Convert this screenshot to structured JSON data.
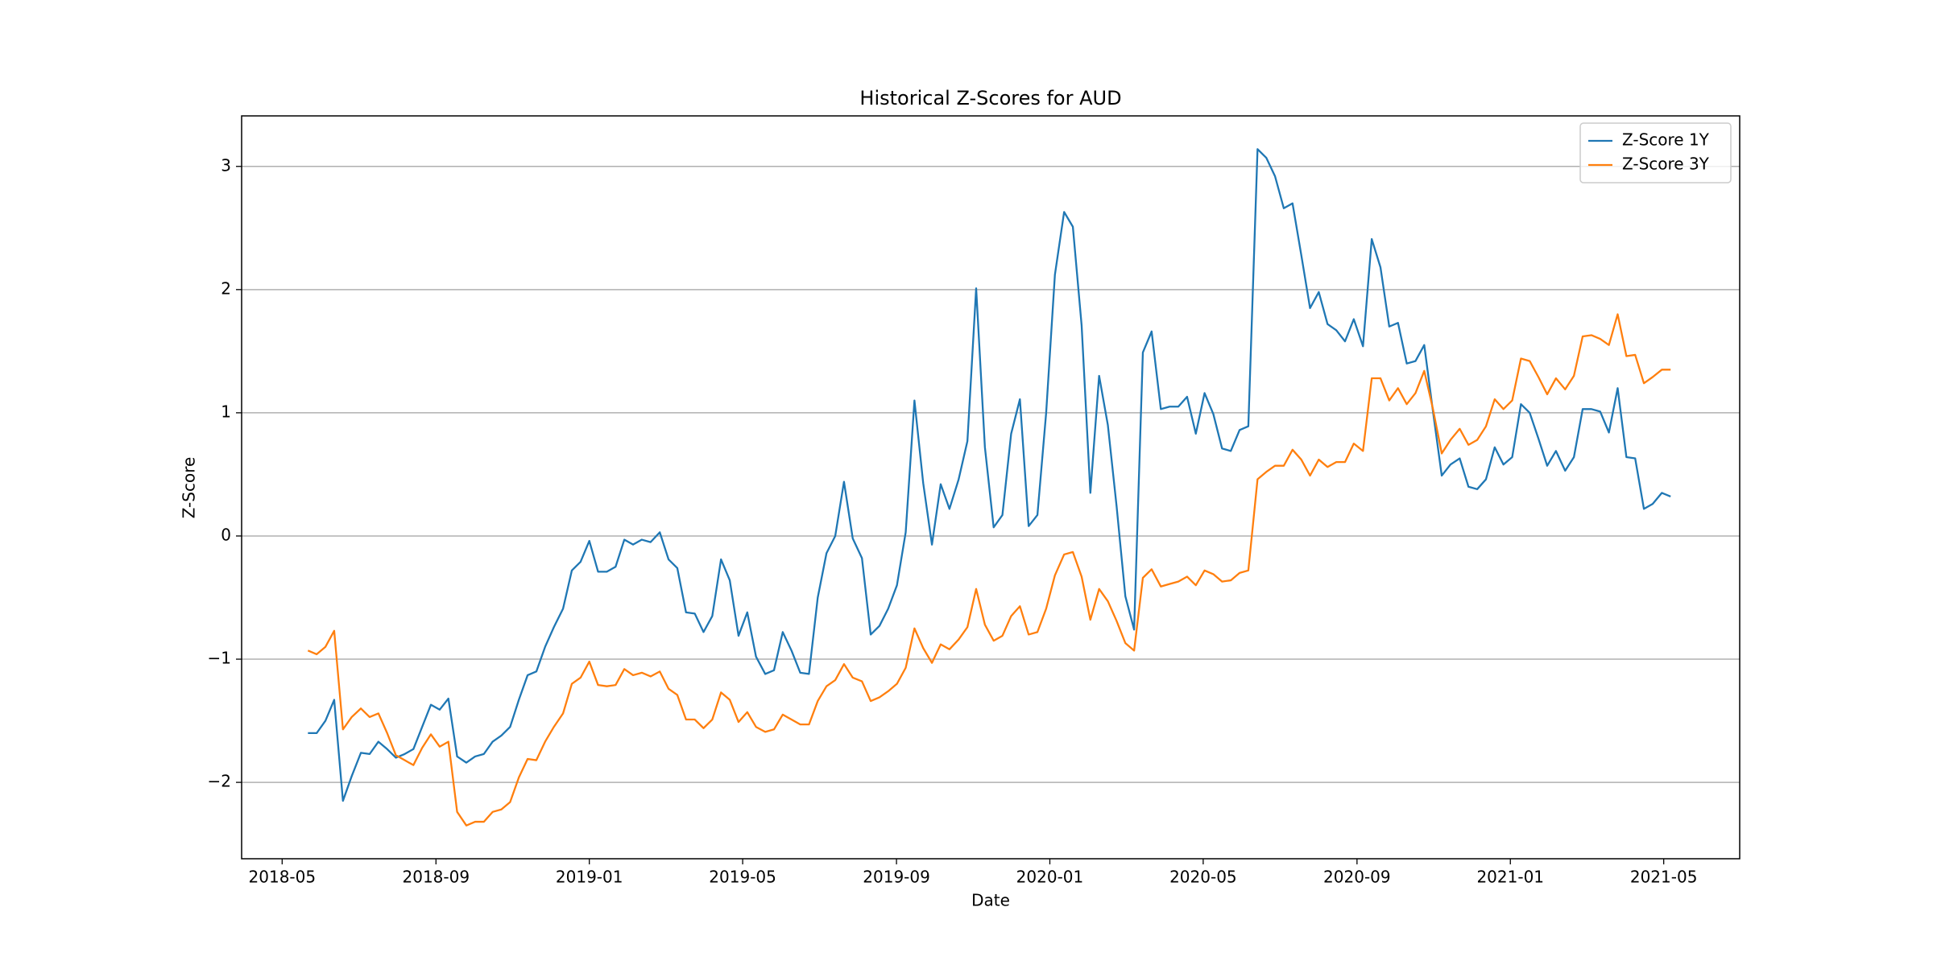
{
  "chart_data": {
    "type": "line",
    "title": "Historical Z-Scores for AUD",
    "xlabel": "Date",
    "ylabel": "Z-Score",
    "x": [
      2018.389,
      2018.408,
      2018.427,
      2018.446,
      2018.465,
      2018.484,
      2018.504,
      2018.523,
      2018.542,
      2018.561,
      2018.58,
      2018.599,
      2018.618,
      2018.637,
      2018.656,
      2018.675,
      2018.694,
      2018.713,
      2018.733,
      2018.752,
      2018.771,
      2018.79,
      2018.809,
      2018.828,
      2018.847,
      2018.866,
      2018.885,
      2018.904,
      2018.923,
      2018.943,
      2018.962,
      2018.981,
      2019.0,
      2019.019,
      2019.038,
      2019.057,
      2019.076,
      2019.095,
      2019.114,
      2019.133,
      2019.153,
      2019.172,
      2019.191,
      2019.21,
      2019.229,
      2019.248,
      2019.267,
      2019.286,
      2019.305,
      2019.324,
      2019.343,
      2019.362,
      2019.382,
      2019.401,
      2019.42,
      2019.439,
      2019.458,
      2019.477,
      2019.496,
      2019.515,
      2019.534,
      2019.553,
      2019.572,
      2019.592,
      2019.611,
      2019.63,
      2019.649,
      2019.668,
      2019.687,
      2019.706,
      2019.725,
      2019.744,
      2019.763,
      2019.782,
      2019.802,
      2019.821,
      2019.84,
      2019.859,
      2019.878,
      2019.897,
      2019.916,
      2019.935,
      2019.954,
      2019.973,
      2019.992,
      2020.011,
      2020.031,
      2020.05,
      2020.069,
      2020.088,
      2020.107,
      2020.126,
      2020.145,
      2020.164,
      2020.183,
      2020.202,
      2020.221,
      2020.241,
      2020.26,
      2020.279,
      2020.298,
      2020.317,
      2020.336,
      2020.355,
      2020.374,
      2020.393,
      2020.412,
      2020.431,
      2020.451,
      2020.47,
      2020.489,
      2020.508,
      2020.527,
      2020.546,
      2020.565,
      2020.584,
      2020.603,
      2020.622,
      2020.641,
      2020.66,
      2020.68,
      2020.699,
      2020.718,
      2020.737,
      2020.756,
      2020.775,
      2020.794,
      2020.813,
      2020.832,
      2020.851,
      2020.87,
      2020.89,
      2020.909,
      2020.928,
      2020.947,
      2020.966,
      2020.985,
      2021.004,
      2021.023,
      2021.042,
      2021.061,
      2021.08,
      2021.099,
      2021.119,
      2021.138,
      2021.157,
      2021.176,
      2021.195,
      2021.214,
      2021.233,
      2021.252,
      2021.271,
      2021.29,
      2021.309,
      2021.329,
      2021.348
    ],
    "series": [
      {
        "name": "Z-Score 1Y",
        "color": "#1f77b4",
        "values": [
          -1.6,
          -1.6,
          -1.5,
          -1.33,
          -2.15,
          -1.95,
          -1.76,
          -1.77,
          -1.67,
          -1.73,
          -1.8,
          -1.77,
          -1.73,
          -1.55,
          -1.37,
          -1.41,
          -1.32,
          -1.79,
          -1.84,
          -1.79,
          -1.77,
          -1.67,
          -1.62,
          -1.55,
          -1.33,
          -1.13,
          -1.1,
          -0.9,
          -0.74,
          -0.59,
          -0.28,
          -0.21,
          -0.04,
          -0.29,
          -0.29,
          -0.25,
          -0.03,
          -0.07,
          -0.03,
          -0.05,
          0.03,
          -0.19,
          -0.26,
          -0.62,
          -0.63,
          -0.78,
          -0.65,
          -0.19,
          -0.36,
          -0.81,
          -0.62,
          -0.98,
          -1.12,
          -1.09,
          -0.78,
          -0.93,
          -1.11,
          -1.12,
          -0.5,
          -0.14,
          0.0,
          0.44,
          -0.02,
          -0.18,
          -0.8,
          -0.73,
          -0.59,
          -0.4,
          0.03,
          1.1,
          0.43,
          -0.07,
          0.42,
          0.22,
          0.46,
          0.77,
          2.01,
          0.72,
          0.07,
          0.17,
          0.83,
          1.11,
          0.08,
          0.17,
          1.0,
          2.12,
          2.63,
          2.51,
          1.71,
          0.35,
          1.3,
          0.9,
          0.24,
          -0.49,
          -0.76,
          1.49,
          1.66,
          1.03,
          1.05,
          1.05,
          1.13,
          0.83,
          1.16,
          0.99,
          0.71,
          0.69,
          0.86,
          0.89,
          3.14,
          3.07,
          2.92,
          2.66,
          2.7,
          2.28,
          1.85,
          1.98,
          1.72,
          1.67,
          1.58,
          1.76,
          1.54,
          2.41,
          2.18,
          1.7,
          1.73,
          1.4,
          1.42,
          1.55,
          1.01,
          0.49,
          0.58,
          0.63,
          0.4,
          0.38,
          0.46,
          0.72,
          0.58,
          0.64,
          1.07,
          1.0,
          0.79,
          0.57,
          0.69,
          0.53,
          0.64,
          1.03,
          1.03,
          1.01,
          0.84,
          1.2,
          0.64,
          0.63,
          0.22,
          0.26,
          0.35,
          0.32
        ]
      },
      {
        "name": "Z-Score 3Y",
        "color": "#ff7f0e",
        "values": [
          -0.93,
          -0.96,
          -0.9,
          -0.77,
          -1.57,
          -1.47,
          -1.4,
          -1.47,
          -1.44,
          -1.6,
          -1.78,
          -1.82,
          -1.86,
          -1.72,
          -1.61,
          -1.71,
          -1.67,
          -2.24,
          -2.35,
          -2.32,
          -2.32,
          -2.24,
          -2.22,
          -2.16,
          -1.96,
          -1.81,
          -1.82,
          -1.67,
          -1.55,
          -1.44,
          -1.2,
          -1.15,
          -1.02,
          -1.21,
          -1.22,
          -1.21,
          -1.08,
          -1.13,
          -1.11,
          -1.14,
          -1.1,
          -1.24,
          -1.29,
          -1.49,
          -1.49,
          -1.56,
          -1.49,
          -1.27,
          -1.33,
          -1.51,
          -1.43,
          -1.55,
          -1.59,
          -1.57,
          -1.45,
          -1.49,
          -1.53,
          -1.53,
          -1.34,
          -1.22,
          -1.17,
          -1.04,
          -1.15,
          -1.18,
          -1.34,
          -1.31,
          -1.26,
          -1.2,
          -1.07,
          -0.75,
          -0.91,
          -1.03,
          -0.88,
          -0.92,
          -0.84,
          -0.74,
          -0.43,
          -0.72,
          -0.85,
          -0.81,
          -0.65,
          -0.57,
          -0.8,
          -0.78,
          -0.59,
          -0.32,
          -0.15,
          -0.13,
          -0.33,
          -0.68,
          -0.43,
          -0.53,
          -0.69,
          -0.87,
          -0.93,
          -0.34,
          -0.27,
          -0.41,
          -0.39,
          -0.37,
          -0.33,
          -0.4,
          -0.28,
          -0.31,
          -0.37,
          -0.36,
          -0.3,
          -0.28,
          0.46,
          0.52,
          0.57,
          0.57,
          0.7,
          0.62,
          0.49,
          0.62,
          0.56,
          0.6,
          0.6,
          0.75,
          0.69,
          1.28,
          1.28,
          1.1,
          1.2,
          1.07,
          1.16,
          1.34,
          1.03,
          0.67,
          0.78,
          0.87,
          0.74,
          0.78,
          0.89,
          1.11,
          1.03,
          1.1,
          1.44,
          1.42,
          1.29,
          1.15,
          1.28,
          1.19,
          1.3,
          1.62,
          1.63,
          1.6,
          1.55,
          1.8,
          1.46,
          1.47,
          1.24,
          1.29,
          1.35,
          1.35
        ]
      }
    ],
    "xlim": [
      2018.245,
      2021.498
    ],
    "xticks": [
      {
        "value": 2018.333,
        "label": "2018-05"
      },
      {
        "value": 2018.667,
        "label": "2018-09"
      },
      {
        "value": 2019.0,
        "label": "2019-01"
      },
      {
        "value": 2019.333,
        "label": "2019-05"
      },
      {
        "value": 2019.667,
        "label": "2019-09"
      },
      {
        "value": 2020.0,
        "label": "2020-01"
      },
      {
        "value": 2020.333,
        "label": "2020-05"
      },
      {
        "value": 2020.667,
        "label": "2020-09"
      },
      {
        "value": 2021.0,
        "label": "2021-01"
      },
      {
        "value": 2021.333,
        "label": "2021-05"
      }
    ],
    "ylim": [
      -2.62,
      3.41
    ],
    "yticks": [
      {
        "value": -2,
        "label": "−2"
      },
      {
        "value": -1,
        "label": "−1"
      },
      0,
      1,
      2,
      3
    ],
    "grid": "y",
    "legend": "upper right"
  }
}
